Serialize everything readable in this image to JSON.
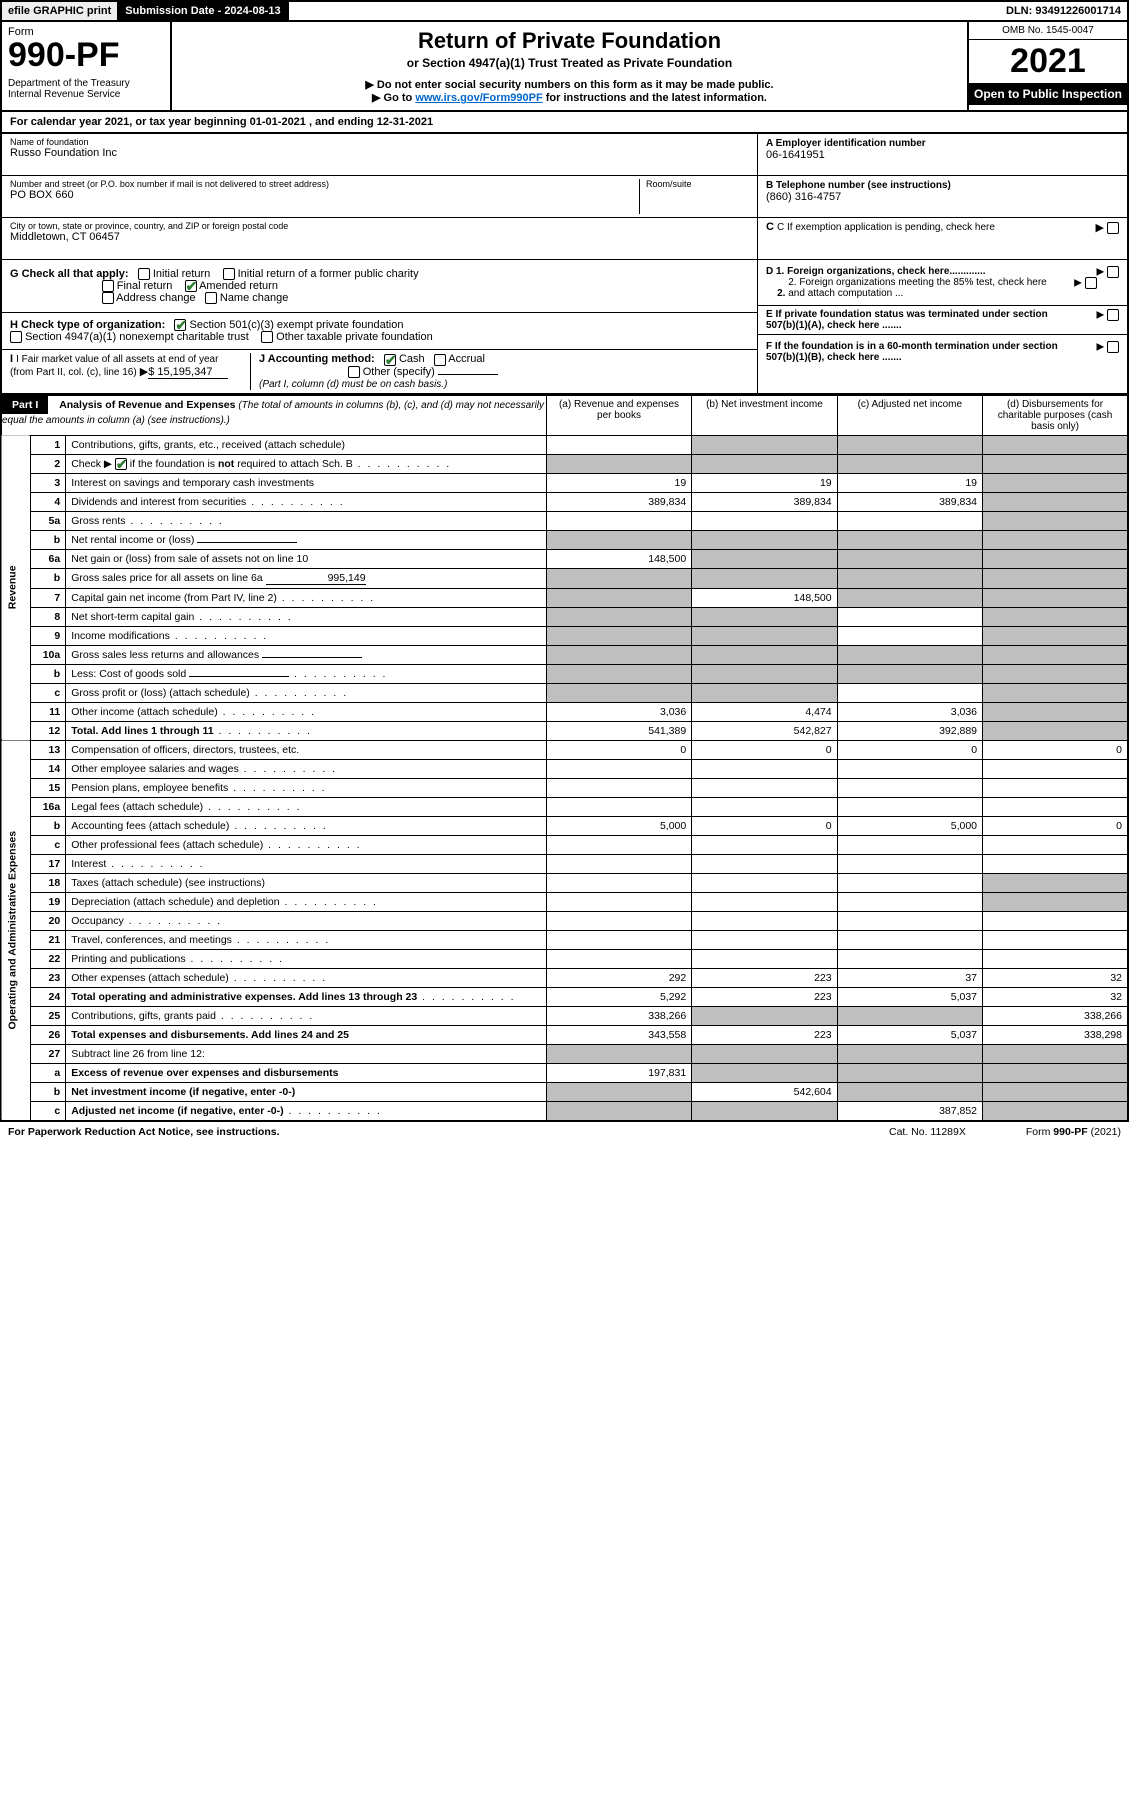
{
  "top": {
    "efile": "efile GRAPHIC print",
    "subdate_label": "Submission Date - 2024-08-13",
    "dln": "DLN: 93491226001714"
  },
  "header": {
    "form_word": "Form",
    "form_num": "990-PF",
    "dept": "Department of the Treasury\nInternal Revenue Service",
    "title": "Return of Private Foundation",
    "sub1": "or Section 4947(a)(1) Trust Treated as Private Foundation",
    "sub2": "▶ Do not enter social security numbers on this form as it may be made public.",
    "sub3_pre": "▶ Go to ",
    "sub3_link": "www.irs.gov/Form990PF",
    "sub3_post": " for instructions and the latest information.",
    "omb": "OMB No. 1545-0047",
    "year": "2021",
    "open": "Open to Public Inspection"
  },
  "calyear": "For calendar year 2021, or tax year beginning 01-01-2021          , and ending 12-31-2021",
  "ident": {
    "name_label": "Name of foundation",
    "name": "Russo Foundation Inc",
    "addr_label": "Number and street (or P.O. box number if mail is not delivered to street address)",
    "addr": "PO BOX 660",
    "room_label": "Room/suite",
    "city_label": "City or town, state or province, country, and ZIP or foreign postal code",
    "city": "Middletown, CT  06457",
    "A_label": "A Employer identification number",
    "A_val": "06-1641951",
    "B_label": "B Telephone number (see instructions)",
    "B_val": "(860) 316-4757",
    "C_label": "C If exemption application is pending, check here",
    "D1": "D 1. Foreign organizations, check here.............",
    "D2": "2. Foreign organizations meeting the 85% test, check here and attach computation ...",
    "E": "E   If private foundation status was terminated under section 507(b)(1)(A), check here .......",
    "F": "F   If the foundation is in a 60-month termination under section 507(b)(1)(B), check here .......",
    "G_label": "G Check all that apply:",
    "G_opts": [
      "Initial return",
      "Initial return of a former public charity",
      "Final return",
      "Amended return",
      "Address change",
      "Name change"
    ],
    "H_label": "H Check type of organization:",
    "H_opts": [
      "Section 501(c)(3) exempt private foundation",
      "Section 4947(a)(1) nonexempt charitable trust",
      "Other taxable private foundation"
    ],
    "I_label": "I Fair market value of all assets at end of year (from Part II, col. (c), line 16)",
    "I_val": "$  15,195,347",
    "J_label": "J Accounting method:",
    "J_opts": [
      "Cash",
      "Accrual"
    ],
    "J_other": "Other (specify)",
    "J_note": "(Part I, column (d) must be on cash basis.)"
  },
  "part1": {
    "label": "Part I",
    "title": "Analysis of Revenue and Expenses",
    "note": "(The total of amounts in columns (b), (c), and (d) may not necessarily equal the amounts in column (a) (see instructions).)",
    "cols": [
      "(a)  Revenue and expenses per books",
      "(b)  Net investment income",
      "(c)  Adjusted net income",
      "(d)  Disbursements for charitable purposes (cash basis only)"
    ],
    "side_rev": "Revenue",
    "side_exp": "Operating and Administrative Expenses"
  },
  "rows": [
    {
      "n": "1",
      "d": "Contributions, gifts, grants, etc., received (attach schedule)",
      "a": "",
      "b": "s",
      "c": "s",
      "e": "s"
    },
    {
      "n": "2",
      "d": "Check ▶ ☑ if the foundation is not required to attach Sch. B",
      "a": "s",
      "b": "s",
      "c": "s",
      "e": "s",
      "dots": 1
    },
    {
      "n": "3",
      "d": "Interest on savings and temporary cash investments",
      "a": "19",
      "b": "19",
      "c": "19",
      "e": "s"
    },
    {
      "n": "4",
      "d": "Dividends and interest from securities",
      "a": "389,834",
      "b": "389,834",
      "c": "389,834",
      "e": "s",
      "dots": 1
    },
    {
      "n": "5a",
      "d": "Gross rents",
      "a": "",
      "b": "",
      "c": "",
      "e": "s",
      "dots": 1
    },
    {
      "n": "b",
      "d": "Net rental income or (loss)",
      "a": "s",
      "b": "s",
      "c": "s",
      "e": "s",
      "uline": 1
    },
    {
      "n": "6a",
      "d": "Net gain or (loss) from sale of assets not on line 10",
      "a": "148,500",
      "b": "s",
      "c": "s",
      "e": "s"
    },
    {
      "n": "b",
      "d": "Gross sales price for all assets on line 6a",
      "a": "s",
      "b": "s",
      "c": "s",
      "e": "s",
      "uval": "995,149"
    },
    {
      "n": "7",
      "d": "Capital gain net income (from Part IV, line 2)",
      "a": "s",
      "b": "148,500",
      "c": "s",
      "e": "s",
      "dots": 1
    },
    {
      "n": "8",
      "d": "Net short-term capital gain",
      "a": "s",
      "b": "s",
      "c": "",
      "e": "s",
      "dots": 1
    },
    {
      "n": "9",
      "d": "Income modifications",
      "a": "s",
      "b": "s",
      "c": "",
      "e": "s",
      "dots": 1
    },
    {
      "n": "10a",
      "d": "Gross sales less returns and allowances",
      "a": "s",
      "b": "s",
      "c": "s",
      "e": "s",
      "uline": 1
    },
    {
      "n": "b",
      "d": "Less: Cost of goods sold",
      "a": "s",
      "b": "s",
      "c": "s",
      "e": "s",
      "dots": 1,
      "uline": 1
    },
    {
      "n": "c",
      "d": "Gross profit or (loss) (attach schedule)",
      "a": "s",
      "b": "s",
      "c": "",
      "e": "s",
      "dots": 1
    },
    {
      "n": "11",
      "d": "Other income (attach schedule)",
      "a": "3,036",
      "b": "4,474",
      "c": "3,036",
      "e": "s",
      "dots": 1
    },
    {
      "n": "12",
      "d": "Total. Add lines 1 through 11",
      "a": "541,389",
      "b": "542,827",
      "c": "392,889",
      "e": "s",
      "bold": 1,
      "dots": 1
    },
    {
      "n": "13",
      "d": "Compensation of officers, directors, trustees, etc.",
      "a": "0",
      "b": "0",
      "c": "0",
      "e": "0"
    },
    {
      "n": "14",
      "d": "Other employee salaries and wages",
      "a": "",
      "b": "",
      "c": "",
      "e": "",
      "dots": 1
    },
    {
      "n": "15",
      "d": "Pension plans, employee benefits",
      "a": "",
      "b": "",
      "c": "",
      "e": "",
      "dots": 1
    },
    {
      "n": "16a",
      "d": "Legal fees (attach schedule)",
      "a": "",
      "b": "",
      "c": "",
      "e": "",
      "dots": 1
    },
    {
      "n": "b",
      "d": "Accounting fees (attach schedule)",
      "a": "5,000",
      "b": "0",
      "c": "5,000",
      "e": "0",
      "dots": 1
    },
    {
      "n": "c",
      "d": "Other professional fees (attach schedule)",
      "a": "",
      "b": "",
      "c": "",
      "e": "",
      "dots": 1
    },
    {
      "n": "17",
      "d": "Interest",
      "a": "",
      "b": "",
      "c": "",
      "e": "",
      "dots": 1
    },
    {
      "n": "18",
      "d": "Taxes (attach schedule) (see instructions)",
      "a": "",
      "b": "",
      "c": "",
      "e": "s"
    },
    {
      "n": "19",
      "d": "Depreciation (attach schedule) and depletion",
      "a": "",
      "b": "",
      "c": "",
      "e": "s",
      "dots": 1
    },
    {
      "n": "20",
      "d": "Occupancy",
      "a": "",
      "b": "",
      "c": "",
      "e": "",
      "dots": 1
    },
    {
      "n": "21",
      "d": "Travel, conferences, and meetings",
      "a": "",
      "b": "",
      "c": "",
      "e": "",
      "dots": 1
    },
    {
      "n": "22",
      "d": "Printing and publications",
      "a": "",
      "b": "",
      "c": "",
      "e": "",
      "dots": 1
    },
    {
      "n": "23",
      "d": "Other expenses (attach schedule)",
      "a": "292",
      "b": "223",
      "c": "37",
      "e": "32",
      "dots": 1
    },
    {
      "n": "24",
      "d": "Total operating and administrative expenses. Add lines 13 through 23",
      "a": "5,292",
      "b": "223",
      "c": "5,037",
      "e": "32",
      "bold": 1,
      "dots": 1
    },
    {
      "n": "25",
      "d": "Contributions, gifts, grants paid",
      "a": "338,266",
      "b": "s",
      "c": "s",
      "e": "338,266",
      "dots": 1
    },
    {
      "n": "26",
      "d": "Total expenses and disbursements. Add lines 24 and 25",
      "a": "343,558",
      "b": "223",
      "c": "5,037",
      "e": "338,298",
      "bold": 1
    },
    {
      "n": "27",
      "d": "Subtract line 26 from line 12:",
      "a": "s",
      "b": "s",
      "c": "s",
      "e": "s"
    },
    {
      "n": "a",
      "d": "Excess of revenue over expenses and disbursements",
      "a": "197,831",
      "b": "s",
      "c": "s",
      "e": "s",
      "bold": 1
    },
    {
      "n": "b",
      "d": "Net investment income (if negative, enter -0-)",
      "a": "s",
      "b": "542,604",
      "c": "s",
      "e": "s",
      "bold": 1
    },
    {
      "n": "c",
      "d": "Adjusted net income (if negative, enter -0-)",
      "a": "s",
      "b": "s",
      "c": "387,852",
      "e": "s",
      "bold": 1,
      "dots": 1
    }
  ],
  "footer": {
    "left": "For Paperwork Reduction Act Notice, see instructions.",
    "mid": "Cat. No. 11289X",
    "right": "Form 990-PF (2021)"
  }
}
